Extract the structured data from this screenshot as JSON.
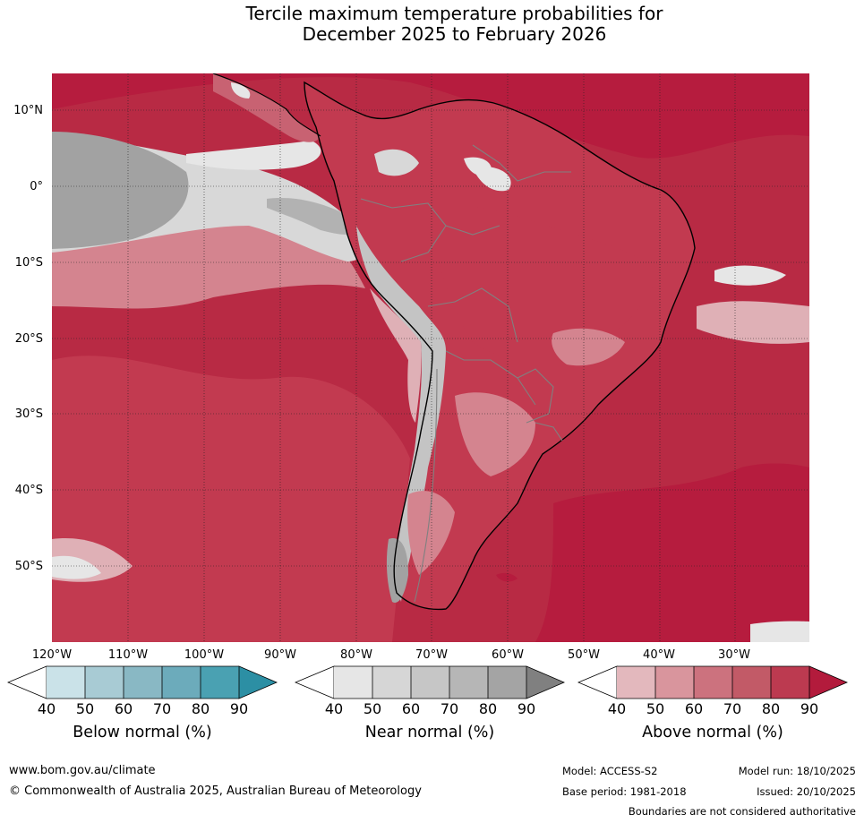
{
  "title": {
    "line1": "Tercile maximum temperature probabilities for",
    "line2": "December 2025 to February 2026"
  },
  "map": {
    "lat_labels": [
      "10°N",
      "0°",
      "10°S",
      "20°S",
      "30°S",
      "40°S",
      "50°S"
    ],
    "lon_labels": [
      "120°W",
      "110°W",
      "100°W",
      "90°W",
      "80°W",
      "70°W",
      "60°W",
      "50°W",
      "40°W",
      "30°W"
    ],
    "colors": {
      "ocean_base": "#b82a44",
      "above_90": "#b61c3e",
      "above_80": "#c23a50",
      "above_70": "#c86272",
      "above_60": "#d4848f",
      "above_50": "#dfb0b6",
      "near_40": "#e6e6e6",
      "near_50": "#d8d8d8",
      "near_60": "#c4c4c4",
      "near_70": "#b2b2b2",
      "near_80": "#a2a2a2",
      "coast": "#000000",
      "border": "#808080"
    }
  },
  "colorbars": [
    {
      "label": "Below normal (%)",
      "ticks": [
        "40",
        "50",
        "60",
        "70",
        "80",
        "90"
      ],
      "colors": [
        "#ffffff",
        "#cae2e8",
        "#a8cbd4",
        "#89b8c4",
        "#6cabbb",
        "#4aa1b2",
        "#2c8fa4"
      ]
    },
    {
      "label": "Near normal (%)",
      "ticks": [
        "40",
        "50",
        "60",
        "70",
        "80",
        "90"
      ],
      "colors": [
        "#ffffff",
        "#e6e6e6",
        "#d6d6d6",
        "#c6c6c6",
        "#b6b6b6",
        "#a4a4a4",
        "#808080"
      ]
    },
    {
      "label": "Above normal (%)",
      "ticks": [
        "40",
        "50",
        "60",
        "70",
        "80",
        "90"
      ],
      "colors": [
        "#ffffff",
        "#e3b8bd",
        "#d9959d",
        "#cc727e",
        "#c25a67",
        "#bc3a50",
        "#b31b3c"
      ]
    }
  ],
  "footer": {
    "website": "www.bom.gov.au/climate",
    "copyright": "© Commonwealth of Australia 2025, Australian Bureau of Meteorology",
    "model": "Model: ACCESS-S2",
    "base_period": "Base period: 1981-2018",
    "model_run": "Model run: 18/10/2025",
    "issued": "Issued: 20/10/2025",
    "disclaimer": "Boundaries are not considered authoritative"
  }
}
